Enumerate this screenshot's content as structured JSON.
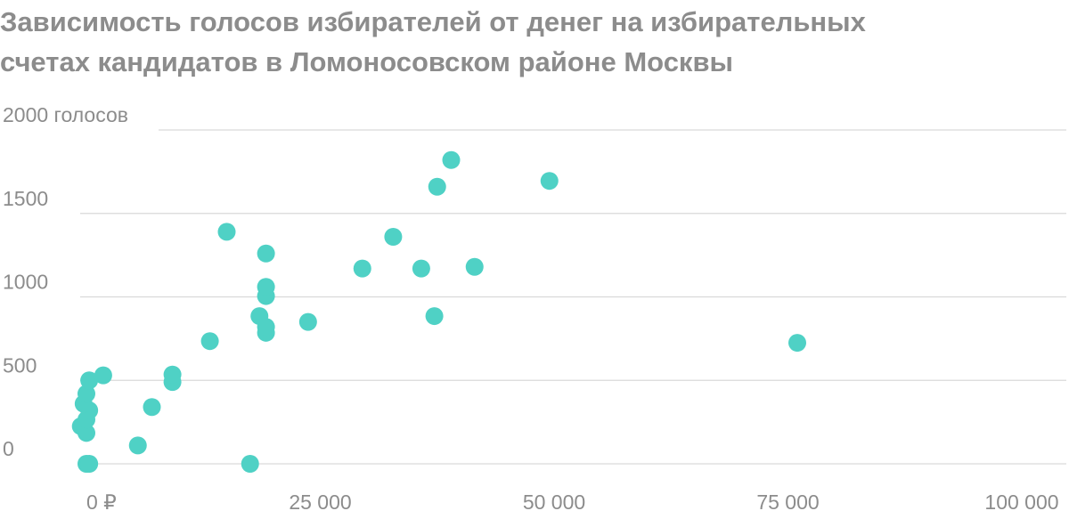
{
  "title_lines": [
    "Зависимость голосов избирателей от денег на избирательных",
    "счетах кандидатов в Ломоносовском районе Москвы"
  ],
  "chart_data": {
    "type": "scatter",
    "title": "Зависимость голосов избирателей от денег на избирательных счетах кандидатов в Ломоносовском районе Москвы",
    "xlabel": "",
    "ylabel": "",
    "xlim": [
      0,
      100000
    ],
    "ylim": [
      0,
      2000
    ],
    "grid": true,
    "x_ticks": [
      {
        "value": 0,
        "label": "0 ₽"
      },
      {
        "value": 25000,
        "label": "25 000"
      },
      {
        "value": 50000,
        "label": "50 000"
      },
      {
        "value": 75000,
        "label": "75 000"
      },
      {
        "value": 100000,
        "label": "100 000"
      }
    ],
    "y_ticks": [
      {
        "value": 0,
        "label": "0"
      },
      {
        "value": 500,
        "label": "500"
      },
      {
        "value": 1000,
        "label": "1000"
      },
      {
        "value": 1500,
        "label": "1500"
      },
      {
        "value": 2000,
        "label": "2000 голосов"
      }
    ],
    "color": "#4fd1c5",
    "points": [
      {
        "x": 0,
        "y": 0
      },
      {
        "x": 300,
        "y": 0
      },
      {
        "x": 17500,
        "y": 0
      },
      {
        "x": 5500,
        "y": 110
      },
      {
        "x": -600,
        "y": 225
      },
      {
        "x": 0,
        "y": 185
      },
      {
        "x": 0,
        "y": 265
      },
      {
        "x": 300,
        "y": 320
      },
      {
        "x": -300,
        "y": 360
      },
      {
        "x": 0,
        "y": 420
      },
      {
        "x": 300,
        "y": 500
      },
      {
        "x": 1800,
        "y": 530
      },
      {
        "x": 7000,
        "y": 340
      },
      {
        "x": 9200,
        "y": 490
      },
      {
        "x": 9200,
        "y": 535
      },
      {
        "x": 13200,
        "y": 735
      },
      {
        "x": 15000,
        "y": 1390
      },
      {
        "x": 18500,
        "y": 885
      },
      {
        "x": 19200,
        "y": 785
      },
      {
        "x": 19200,
        "y": 820
      },
      {
        "x": 19200,
        "y": 1005
      },
      {
        "x": 19200,
        "y": 1060
      },
      {
        "x": 19200,
        "y": 1260
      },
      {
        "x": 23700,
        "y": 850
      },
      {
        "x": 29500,
        "y": 1170
      },
      {
        "x": 32800,
        "y": 1360
      },
      {
        "x": 35800,
        "y": 1170
      },
      {
        "x": 37200,
        "y": 885
      },
      {
        "x": 37500,
        "y": 1660
      },
      {
        "x": 39000,
        "y": 1820
      },
      {
        "x": 41500,
        "y": 1180
      },
      {
        "x": 49500,
        "y": 1695
      },
      {
        "x": 76000,
        "y": 725
      }
    ]
  }
}
